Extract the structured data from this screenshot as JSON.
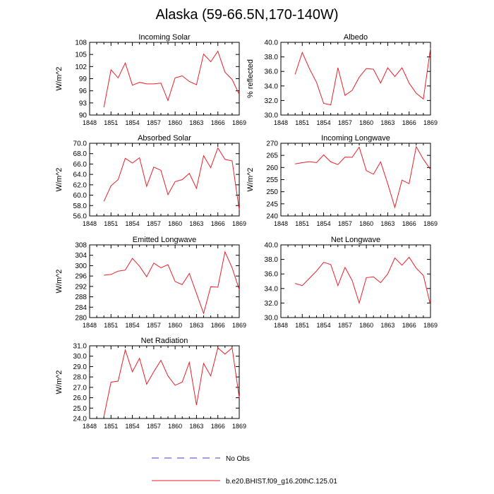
{
  "page": {
    "title": "Alaska (59-66.5N,170-140W)"
  },
  "legend": [
    {
      "label": "No Obs",
      "style": "dashed",
      "color": "#3b3bd6"
    },
    {
      "label": "b.e20.BHIST.f09_g16.20thC.125.01",
      "style": "solid",
      "color": "#e8202a"
    }
  ],
  "chart_data": [
    {
      "type": "line",
      "title": "Incoming Solar",
      "ylabel": "W/m^2",
      "xlim": [
        1848,
        1869
      ],
      "ylim": [
        90,
        108
      ],
      "x_ticks": [
        "1848",
        "1851",
        "1854",
        "1857",
        "1860",
        "1863",
        "1866",
        "1869"
      ],
      "y_ticks": [
        "90",
        "93",
        "96",
        "99",
        "102",
        "105",
        "108"
      ],
      "x": [
        1850,
        1851,
        1852,
        1853,
        1854,
        1855,
        1856,
        1857,
        1858,
        1859,
        1860,
        1861,
        1862,
        1863,
        1864,
        1865,
        1866,
        1867,
        1868,
        1869
      ],
      "series": [
        {
          "name": "b.e20.BHIST.f09_g16.20thC.125.01",
          "values": [
            91.9,
            101.2,
            99.2,
            102.9,
            97.4,
            98.1,
            97.7,
            97.7,
            97.9,
            93.6,
            99.2,
            99.7,
            98.3,
            97.5,
            105.1,
            103.2,
            105.8,
            100.6,
            98.8,
            95.1
          ]
        }
      ]
    },
    {
      "type": "line",
      "title": "Albedo",
      "ylabel": "% reflected",
      "xlim": [
        1848,
        1869
      ],
      "ylim": [
        30,
        40
      ],
      "x_ticks": [
        "1848",
        "1851",
        "1854",
        "1857",
        "1860",
        "1863",
        "1866",
        "1869"
      ],
      "y_ticks": [
        "30.0",
        "32.0",
        "34.0",
        "36.0",
        "38.0",
        "40.0"
      ],
      "x": [
        1850,
        1851,
        1852,
        1853,
        1854,
        1855,
        1856,
        1857,
        1858,
        1859,
        1860,
        1861,
        1862,
        1863,
        1864,
        1865,
        1866,
        1867,
        1868,
        1869
      ],
      "series": [
        {
          "name": "b.e20.BHIST.f09_g16.20thC.125.01",
          "values": [
            35.6,
            38.6,
            36.4,
            34.5,
            31.6,
            31.4,
            36.5,
            32.7,
            33.4,
            35.2,
            36.4,
            36.3,
            34.4,
            36.5,
            35.3,
            36.5,
            34.4,
            33.0,
            32.2,
            39.2
          ]
        }
      ]
    },
    {
      "type": "line",
      "title": "Absorbed Solar",
      "ylabel": "W/m^2",
      "xlim": [
        1848,
        1869
      ],
      "ylim": [
        56,
        70
      ],
      "x_ticks": [
        "1848",
        "1851",
        "1854",
        "1857",
        "1860",
        "1863",
        "1866",
        "1869"
      ],
      "y_ticks": [
        "56.0",
        "58.0",
        "60.0",
        "62.0",
        "64.0",
        "66.0",
        "68.0",
        "70.0"
      ],
      "x": [
        1850,
        1851,
        1852,
        1853,
        1854,
        1855,
        1856,
        1857,
        1858,
        1859,
        1860,
        1861,
        1862,
        1863,
        1864,
        1865,
        1866,
        1867,
        1868,
        1869
      ],
      "series": [
        {
          "name": "b.e20.BHIST.f09_g16.20thC.125.01",
          "values": [
            58.8,
            61.8,
            63.0,
            67.1,
            66.2,
            67.2,
            61.7,
            65.4,
            64.8,
            60.1,
            62.6,
            63.0,
            64.2,
            61.3,
            67.6,
            65.3,
            69.1,
            66.9,
            66.6,
            57.2
          ]
        }
      ]
    },
    {
      "type": "line",
      "title": "Incoming Longwave",
      "ylabel": "W/m^2",
      "xlim": [
        1848,
        1869
      ],
      "ylim": [
        240,
        270
      ],
      "x_ticks": [
        "1848",
        "1851",
        "1854",
        "1857",
        "1860",
        "1863",
        "1866",
        "1869"
      ],
      "y_ticks": [
        "240",
        "245",
        "250",
        "255",
        "260",
        "265",
        "270"
      ],
      "x": [
        1850,
        1851,
        1852,
        1853,
        1854,
        1855,
        1856,
        1857,
        1858,
        1859,
        1860,
        1861,
        1862,
        1863,
        1864,
        1865,
        1866,
        1867,
        1868,
        1869
      ],
      "series": [
        {
          "name": "b.e20.BHIST.f09_g16.20thC.125.01",
          "values": [
            261.5,
            262.0,
            262.4,
            262.0,
            265.2,
            262.3,
            261.2,
            264.3,
            264.2,
            268.4,
            258.7,
            257.2,
            262.3,
            253.3,
            243.5,
            254.8,
            253.3,
            268.6,
            263.4,
            259.2
          ]
        }
      ]
    },
    {
      "type": "line",
      "title": "Emitted Longwave",
      "ylabel": "W/m^2",
      "xlim": [
        1848,
        1869
      ],
      "ylim": [
        280,
        308
      ],
      "x_ticks": [
        "1848",
        "1851",
        "1854",
        "1857",
        "1860",
        "1863",
        "1866",
        "1869"
      ],
      "y_ticks": [
        "280",
        "284",
        "288",
        "292",
        "296",
        "300",
        "304",
        "308"
      ],
      "x": [
        1850,
        1851,
        1852,
        1853,
        1854,
        1855,
        1856,
        1857,
        1858,
        1859,
        1860,
        1861,
        1862,
        1863,
        1864,
        1865,
        1866,
        1867,
        1868,
        1869
      ],
      "series": [
        {
          "name": "b.e20.BHIST.f09_g16.20thC.125.01",
          "values": [
            296.3,
            296.6,
            297.9,
            298.3,
            302.8,
            299.8,
            295.7,
            301.0,
            299.2,
            300.4,
            293.9,
            292.7,
            297.0,
            289.3,
            281.6,
            291.9,
            291.7,
            305.3,
            299.2,
            290.8
          ]
        }
      ]
    },
    {
      "type": "line",
      "title": "Net Longwave",
      "ylabel": "",
      "xlim": [
        1848,
        1869
      ],
      "ylim": [
        30,
        40
      ],
      "x_ticks": [
        "1848",
        "1851",
        "1854",
        "1857",
        "1860",
        "1863",
        "1866",
        "1869"
      ],
      "y_ticks": [
        "30.0",
        "32.0",
        "34.0",
        "36.0",
        "38.0",
        "40.0"
      ],
      "x": [
        1850,
        1851,
        1852,
        1853,
        1854,
        1855,
        1856,
        1857,
        1858,
        1859,
        1860,
        1861,
        1862,
        1863,
        1864,
        1865,
        1866,
        1867,
        1868,
        1869
      ],
      "series": [
        {
          "name": "b.e20.BHIST.f09_g16.20thC.125.01",
          "values": [
            34.7,
            34.4,
            35.4,
            36.4,
            37.6,
            37.3,
            34.4,
            36.9,
            35.1,
            32.0,
            35.5,
            35.6,
            34.8,
            36.0,
            38.2,
            37.2,
            38.3,
            36.8,
            35.8,
            31.7
          ]
        }
      ]
    },
    {
      "type": "line",
      "title": "Net Radiation",
      "ylabel": "W/m^2",
      "xlim": [
        1848,
        1869
      ],
      "ylim": [
        24,
        31
      ],
      "x_ticks": [
        "1848",
        "1851",
        "1854",
        "1857",
        "1860",
        "1863",
        "1866",
        "1869"
      ],
      "y_ticks": [
        "24.0",
        "25.0",
        "26.0",
        "27.0",
        "28.0",
        "29.0",
        "30.0",
        "31.0"
      ],
      "x": [
        1850,
        1851,
        1852,
        1853,
        1854,
        1855,
        1856,
        1857,
        1858,
        1859,
        1860,
        1861,
        1862,
        1863,
        1864,
        1865,
        1866,
        1867,
        1868,
        1869
      ],
      "series": [
        {
          "name": "b.e20.BHIST.f09_g16.20thC.125.01",
          "values": [
            24.2,
            27.5,
            27.6,
            30.6,
            28.5,
            29.8,
            27.3,
            28.5,
            29.6,
            28.1,
            27.2,
            27.5,
            29.4,
            25.3,
            29.3,
            28.1,
            30.8,
            30.2,
            30.8,
            26.0
          ]
        }
      ]
    }
  ]
}
